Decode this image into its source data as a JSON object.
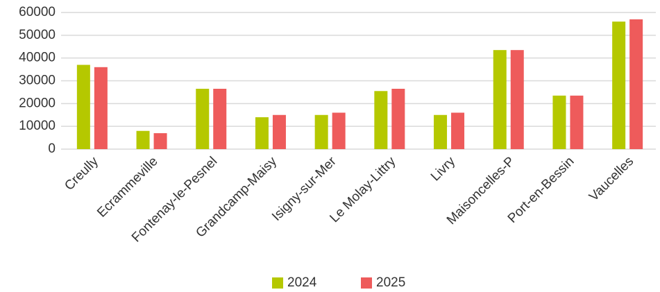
{
  "chart_data": {
    "type": "bar",
    "categories": [
      "Creully",
      "Ecrammeville",
      "Fontenay-le-Pesnel",
      "Grandcamp-Maisy",
      "Isigny-sur-Mer",
      "Le Molay-Littry",
      "Livry",
      "Maisoncelles-P",
      "Port-en-Bessin",
      "Vaucelles"
    ],
    "series": [
      {
        "name": "2024",
        "color": "#b5c800",
        "values": [
          37000,
          8000,
          26500,
          14000,
          15000,
          25500,
          15000,
          43500,
          23500,
          56000
        ]
      },
      {
        "name": "2025",
        "color": "#ee5b5b",
        "values": [
          36000,
          7000,
          26500,
          15000,
          16000,
          26500,
          16000,
          43500,
          23500,
          57000
        ]
      }
    ],
    "ylim": [
      0,
      60000
    ],
    "yticks": [
      0,
      10000,
      20000,
      30000,
      40000,
      50000,
      60000
    ],
    "grid": true,
    "legend": "bottom"
  }
}
